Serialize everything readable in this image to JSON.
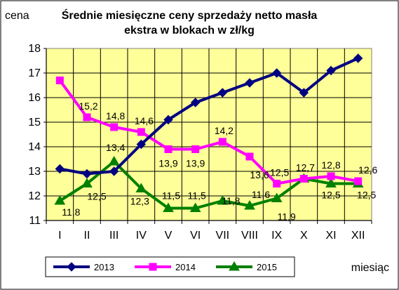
{
  "chart_data": {
    "type": "line",
    "title_line1": "Średnie miesięczne ceny sprzedaży netto masła",
    "title_line2": "ekstra w blokach w zł/kg",
    "ylabel": "cena",
    "xlabel": "miesiąc",
    "categories": [
      "I",
      "II",
      "III",
      "IV",
      "V",
      "VI",
      "VII",
      "VIII",
      "IX",
      "X",
      "XI",
      "XII"
    ],
    "ylim": [
      11,
      18
    ],
    "yticks": [
      11,
      12,
      13,
      14,
      15,
      16,
      17,
      18
    ],
    "grid": true,
    "plot_background": "#ffff99",
    "legend_position": "bottom",
    "series": [
      {
        "name": "2013",
        "color": "#000080",
        "marker": "diamond",
        "values": [
          13.1,
          12.9,
          13.0,
          14.1,
          15.1,
          15.8,
          16.2,
          16.6,
          17.0,
          16.2,
          17.1,
          17.6
        ],
        "labels": []
      },
      {
        "name": "2014",
        "color": "#ff00ff",
        "marker": "square",
        "values": [
          16.7,
          15.2,
          14.8,
          14.6,
          13.9,
          13.9,
          14.2,
          13.6,
          12.5,
          12.7,
          12.8,
          12.6
        ],
        "labels": [
          "",
          "15,2",
          "14,8",
          "14,6",
          "13,9",
          "13,9",
          "14,2",
          "13,6",
          "12,5",
          "12,7",
          "12,8",
          "12,6"
        ]
      },
      {
        "name": "2015",
        "color": "#008000",
        "marker": "triangle",
        "values": [
          11.8,
          12.5,
          13.4,
          12.3,
          11.5,
          11.5,
          11.8,
          11.6,
          11.9,
          12.7,
          12.5,
          12.5
        ],
        "labels": [
          "11,8",
          "12,5",
          "13,4",
          "12,3",
          "11,5",
          "11,5",
          "11,8",
          "11,6",
          "11,9",
          "",
          "12,5",
          "12,5"
        ]
      }
    ]
  }
}
